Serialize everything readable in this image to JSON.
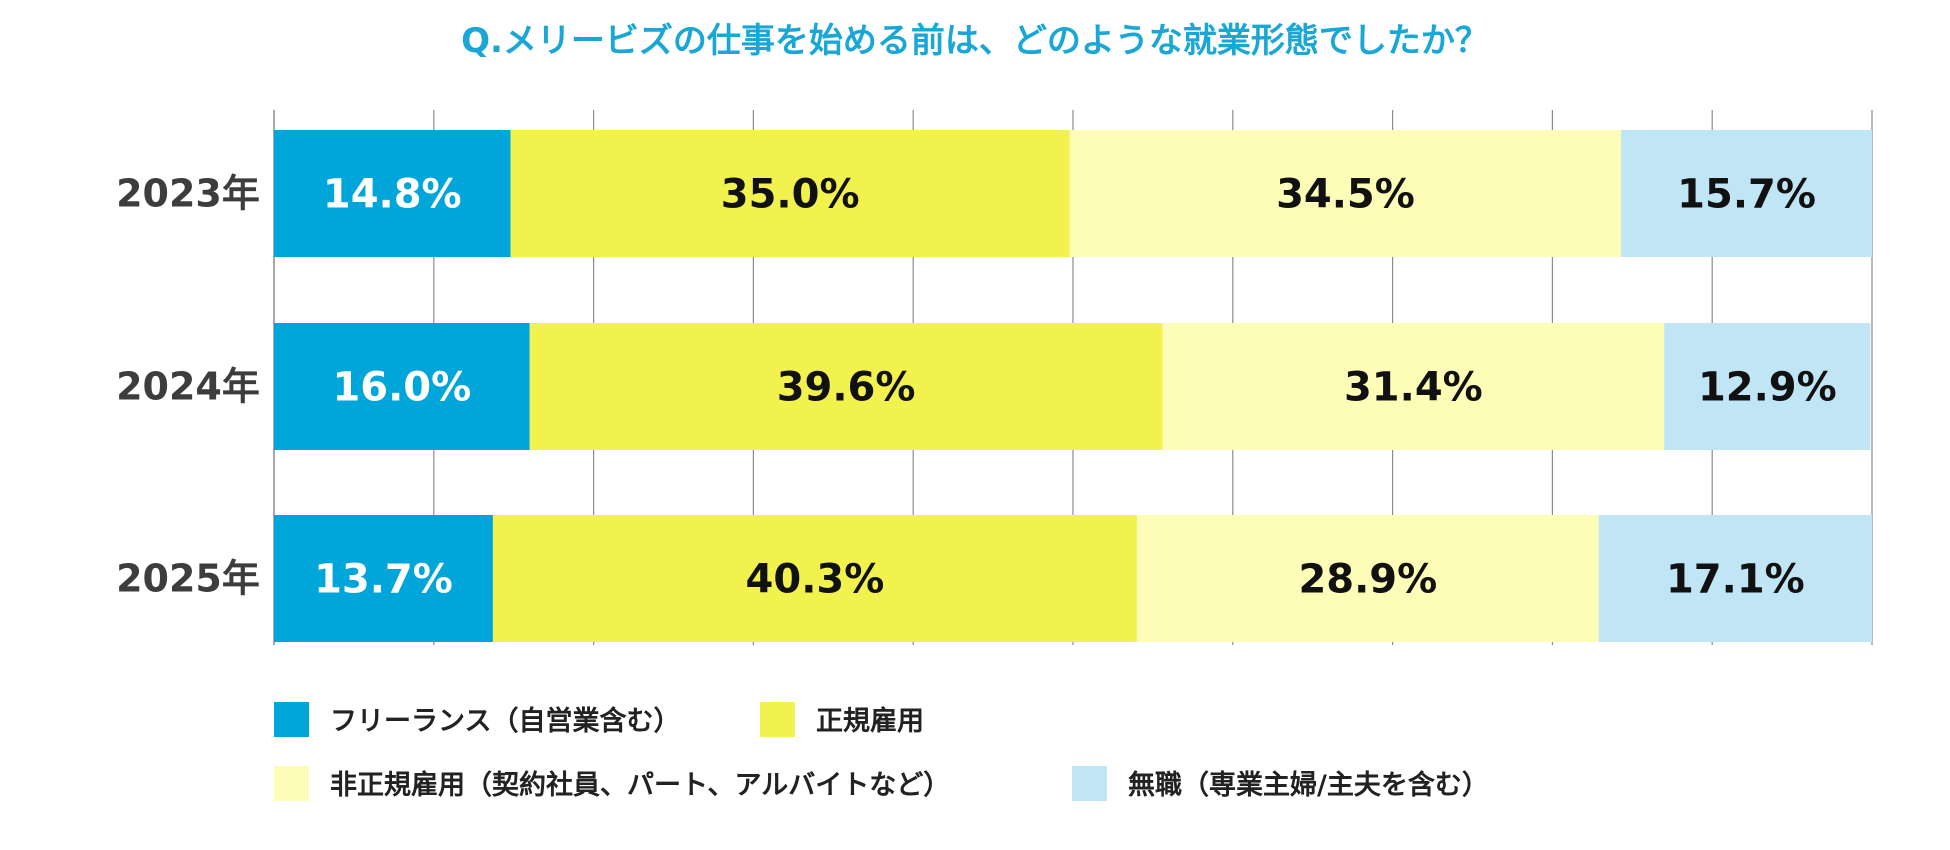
{
  "chart_data": {
    "type": "bar",
    "orientation": "horizontal",
    "stacked": true,
    "percent_stacked": true,
    "title": "Q.メリービズの仕事を始める前は、どのような就業形態でしたか？",
    "categories": [
      "2023年",
      "2024年",
      "2025年"
    ],
    "series": [
      {
        "name": "フリーランス（自営業含む）",
        "color": "#00a6da",
        "label_color": "#ffffff",
        "values": [
          14.8,
          16.0,
          13.7
        ],
        "labels": [
          "14.8%",
          "16.0%",
          "13.7%"
        ]
      },
      {
        "name": "正規雇用",
        "color": "#f2f24e",
        "label_color": "#111111",
        "values": [
          35.0,
          39.6,
          40.3
        ],
        "labels": [
          "35.0%",
          "39.6%",
          "40.3%"
        ]
      },
      {
        "name": "非正規雇用（契約社員、パート、アルバイトなど）",
        "color": "#fdfdb8",
        "label_color": "#111111",
        "values": [
          34.5,
          31.4,
          28.9
        ],
        "labels": [
          "34.5%",
          "31.4%",
          "28.9%"
        ]
      },
      {
        "name": "無職（専業主婦/主夫を含む）",
        "color": "#c0e5f5",
        "label_color": "#111111",
        "values": [
          15.7,
          12.9,
          17.1
        ],
        "labels": [
          "15.7%",
          "12.9%",
          "17.1%"
        ]
      }
    ],
    "xlim": [
      0,
      100
    ],
    "grid": true,
    "legend_position": "bottom",
    "title_color": "#1aa7d6"
  }
}
